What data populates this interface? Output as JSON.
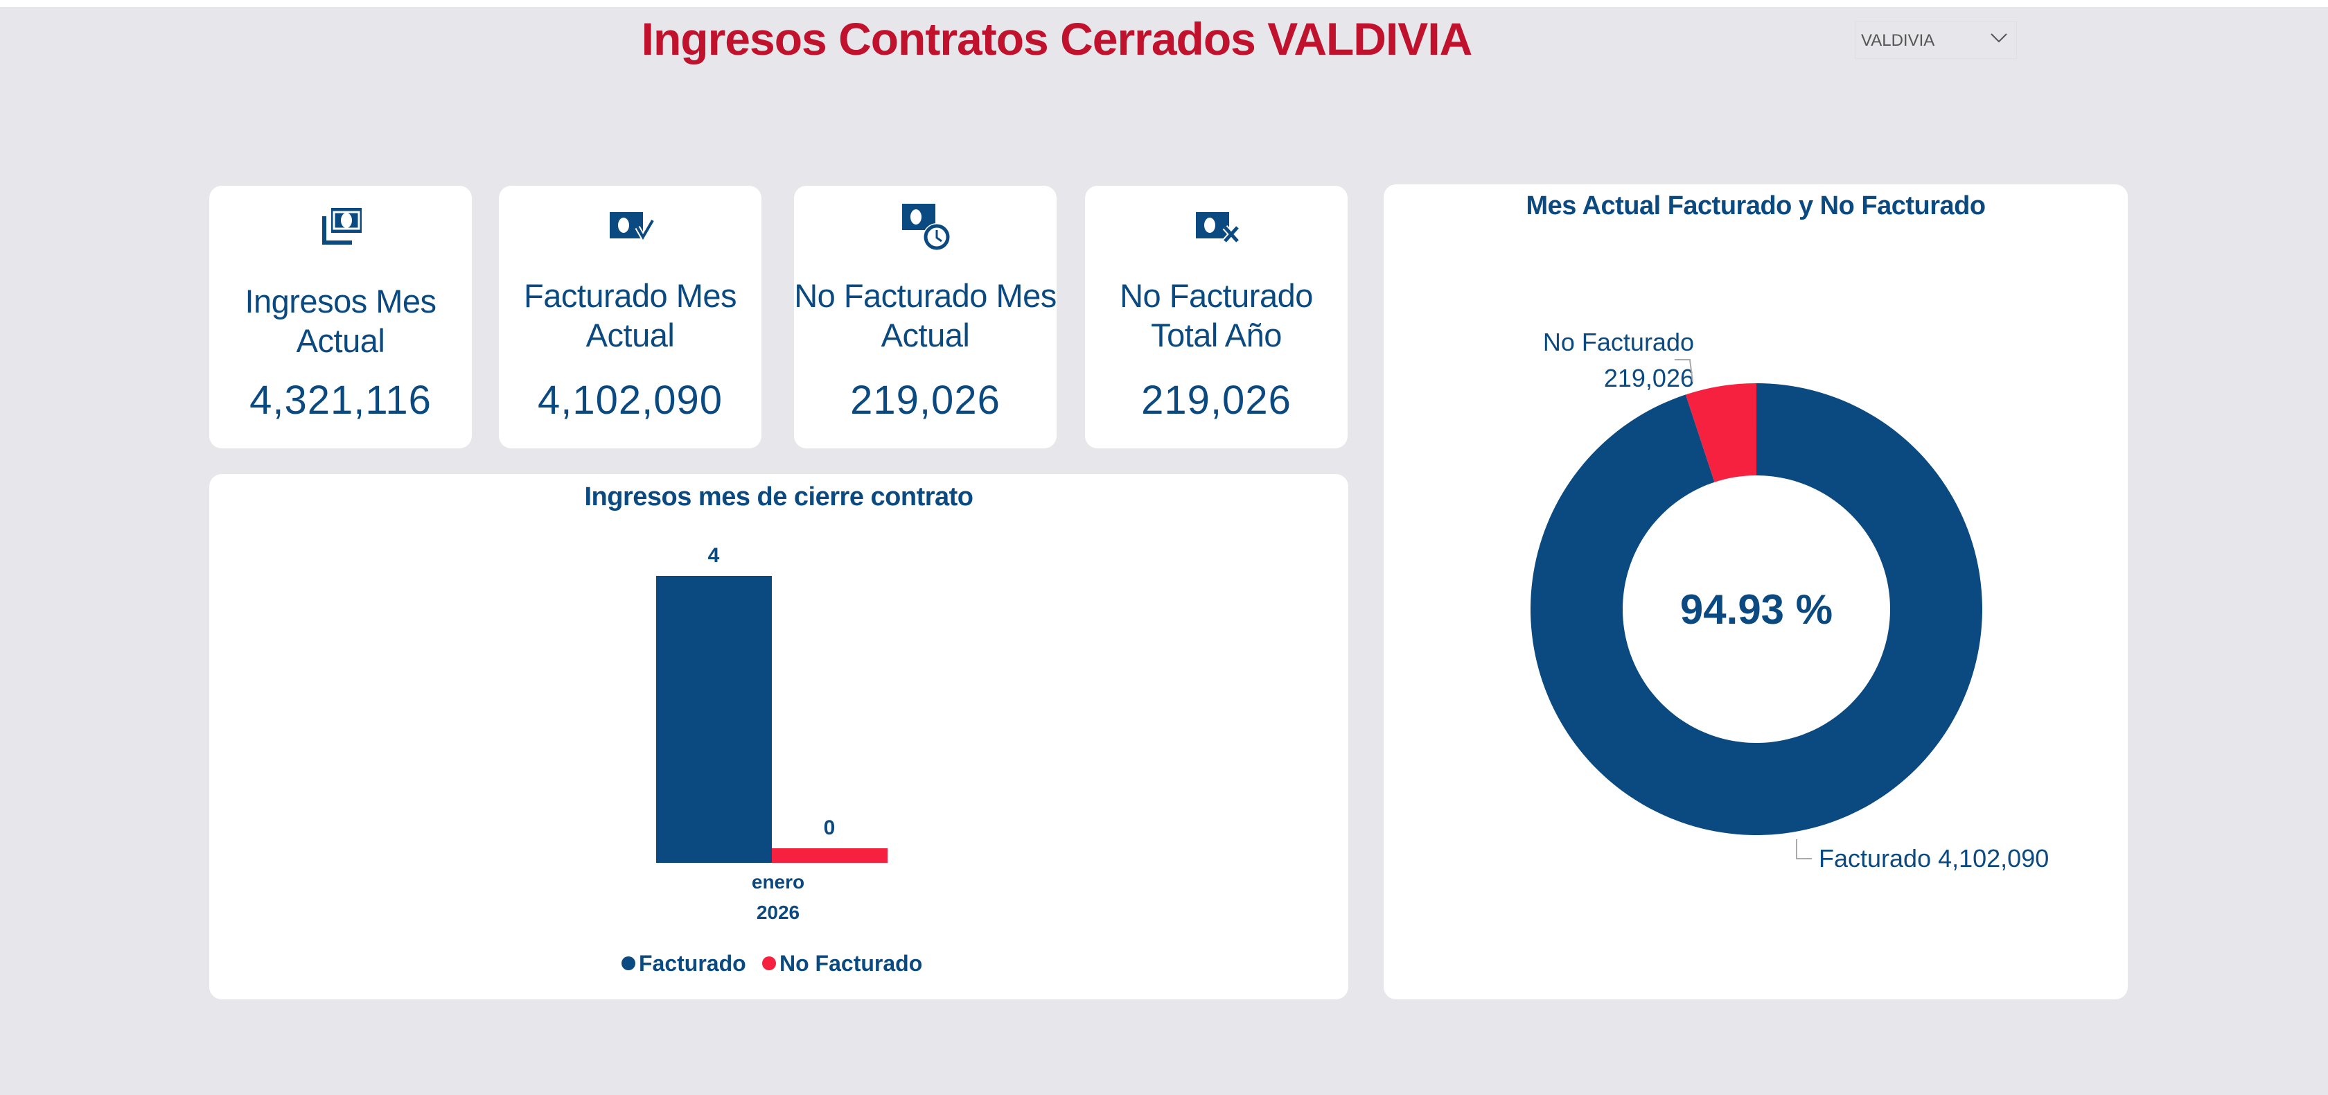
{
  "header": {
    "title": "Ingresos Contratos Cerrados  VALDIVIA"
  },
  "filter": {
    "selected": "VALDIVIA",
    "icon": "chevron-down-icon"
  },
  "colors": {
    "facturado": "#0b4a80",
    "no_facturado": "#f5213f",
    "title": "#c0112d",
    "background": "#e6e6eb"
  },
  "kpis": [
    {
      "label": "Ingresos Mes Actual",
      "value": "4,321,116",
      "icon": "money-stack-icon"
    },
    {
      "label": "Facturado Mes Actual",
      "value": "4,102,090",
      "icon": "money-check-icon"
    },
    {
      "label": "No Facturado Mes Actual",
      "value": "219,026",
      "icon": "money-clock-icon"
    },
    {
      "label": "No Facturado Total Año",
      "value": "219,026",
      "icon": "money-x-icon"
    }
  ],
  "chart_data": [
    {
      "type": "bar",
      "title": "Ingresos mes de cierre contrato",
      "categories": [
        "enero 2026"
      ],
      "category_labels": {
        "month": "enero",
        "year": "2026"
      },
      "series": [
        {
          "name": "Facturado",
          "values": [
            4
          ],
          "data_labels": [
            "4"
          ]
        },
        {
          "name": "No Facturado",
          "values": [
            0
          ],
          "data_labels": [
            "0"
          ]
        }
      ],
      "legend": "bottom",
      "grid": false
    },
    {
      "type": "pie",
      "title": "Mes Actual Facturado y No Facturado",
      "donut": true,
      "center_label": "94.93 %",
      "slices": [
        {
          "name": "Facturado",
          "value": 4102090,
          "label": "Facturado 4,102,090"
        },
        {
          "name": "No Facturado",
          "value": 219026,
          "label_name": "No Facturado",
          "label_value": "219,026"
        }
      ]
    }
  ]
}
